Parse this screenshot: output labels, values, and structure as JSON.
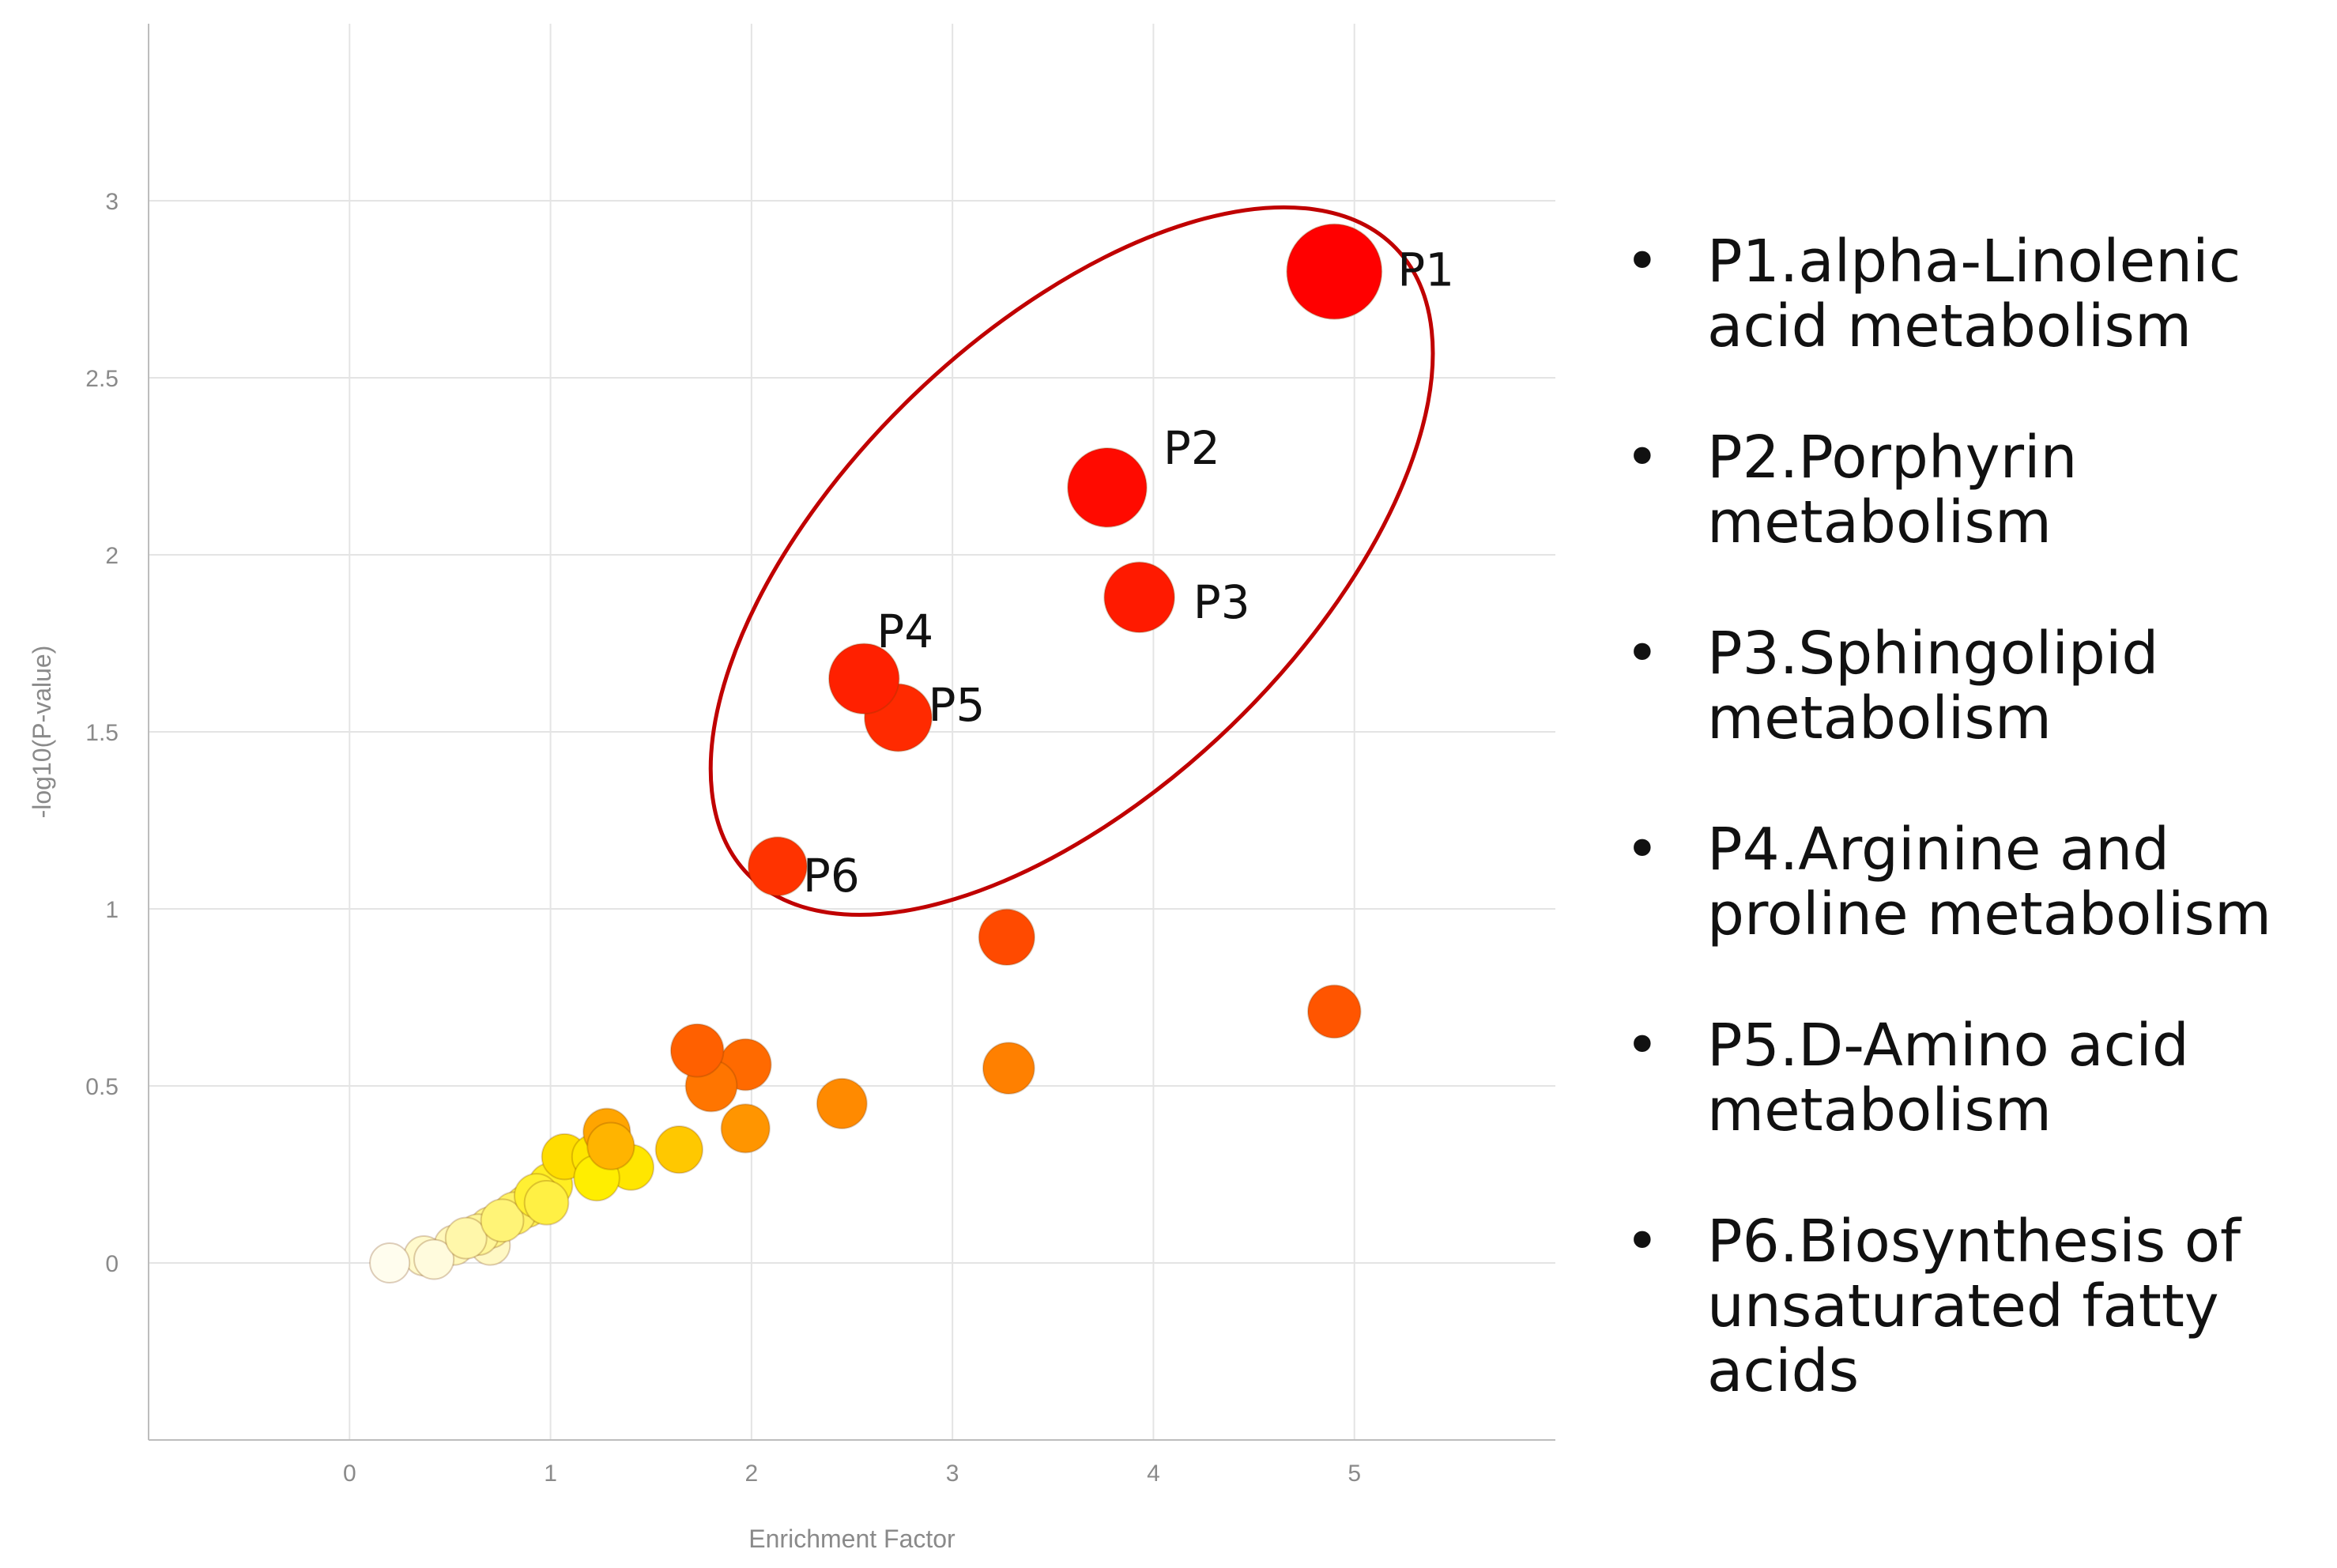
{
  "chart_data": {
    "type": "scatter",
    "xlabel": "Enrichment Factor",
    "ylabel": "-log10(P-value)",
    "xlim": [
      -1,
      6
    ],
    "ylim": [
      -0.5,
      3.5
    ],
    "x_ticks": [
      0,
      1,
      2,
      3,
      4,
      5
    ],
    "y_ticks": [
      0,
      0.5,
      1,
      1.5,
      2,
      2.5,
      3
    ],
    "grid": true,
    "points": [
      {
        "label": "P1",
        "x": 4.9,
        "y": 2.8,
        "color": "#ff0000",
        "size": 1.0
      },
      {
        "label": "P2",
        "x": 3.77,
        "y": 2.19,
        "color": "#ff0a00",
        "size": 0.78
      },
      {
        "label": "P3",
        "x": 3.93,
        "y": 1.88,
        "color": "#ff1a00",
        "size": 0.66
      },
      {
        "label": "P4",
        "x": 2.56,
        "y": 1.65,
        "color": "#ff2000",
        "size": 0.66
      },
      {
        "label": "P5",
        "x": 2.73,
        "y": 1.54,
        "color": "#ff2a00",
        "size": 0.62
      },
      {
        "label": "P6",
        "x": 2.13,
        "y": 1.12,
        "color": "#ff3300",
        "size": 0.5
      },
      {
        "label": "",
        "x": 3.27,
        "y": 0.92,
        "color": "#ff4a00",
        "size": 0.46
      },
      {
        "label": "",
        "x": 4.9,
        "y": 0.71,
        "color": "#ff5500",
        "size": 0.42
      },
      {
        "label": "",
        "x": 1.73,
        "y": 0.6,
        "color": "#ff6000",
        "size": 0.42
      },
      {
        "label": "",
        "x": 1.97,
        "y": 0.56,
        "color": "#ff6a00",
        "size": 0.4
      },
      {
        "label": "",
        "x": 1.8,
        "y": 0.5,
        "color": "#ff7500",
        "size": 0.4
      },
      {
        "label": "",
        "x": 3.28,
        "y": 0.55,
        "color": "#ff8000",
        "size": 0.4
      },
      {
        "label": "",
        "x": 2.45,
        "y": 0.45,
        "color": "#ff8a00",
        "size": 0.38
      },
      {
        "label": "",
        "x": 1.97,
        "y": 0.38,
        "color": "#ff9500",
        "size": 0.36
      },
      {
        "label": "",
        "x": 1.28,
        "y": 0.37,
        "color": "#ffa500",
        "size": 0.34
      },
      {
        "label": "",
        "x": 1.3,
        "y": 0.33,
        "color": "#ffb400",
        "size": 0.34
      },
      {
        "label": "",
        "x": 1.64,
        "y": 0.32,
        "color": "#ffc800",
        "size": 0.34
      },
      {
        "label": "",
        "x": 1.07,
        "y": 0.3,
        "color": "#ffdd00",
        "size": 0.32
      },
      {
        "label": "",
        "x": 1.22,
        "y": 0.3,
        "color": "#ffe600",
        "size": 0.32
      },
      {
        "label": "",
        "x": 1.4,
        "y": 0.27,
        "color": "#ffe600",
        "size": 0.32
      },
      {
        "label": "",
        "x": 1.23,
        "y": 0.24,
        "color": "#ffee00",
        "size": 0.32
      },
      {
        "label": "",
        "x": 1.0,
        "y": 0.22,
        "color": "#ffee22",
        "size": 0.3
      },
      {
        "label": "",
        "x": 0.93,
        "y": 0.19,
        "color": "#fff033",
        "size": 0.3
      },
      {
        "label": "",
        "x": 0.98,
        "y": 0.17,
        "color": "#fff044",
        "size": 0.3
      },
      {
        "label": "",
        "x": 0.88,
        "y": 0.16,
        "color": "#fff155",
        "size": 0.28
      },
      {
        "label": "",
        "x": 0.82,
        "y": 0.14,
        "color": "#fff266",
        "size": 0.28
      },
      {
        "label": "",
        "x": 0.76,
        "y": 0.12,
        "color": "#fff477",
        "size": 0.28
      },
      {
        "label": "",
        "x": 0.7,
        "y": 0.1,
        "color": "#fff588",
        "size": 0.26
      },
      {
        "label": "",
        "x": 0.64,
        "y": 0.08,
        "color": "#fff699",
        "size": 0.26
      },
      {
        "label": "",
        "x": 0.58,
        "y": 0.07,
        "color": "#fff7aa",
        "size": 0.26
      },
      {
        "label": "",
        "x": 0.52,
        "y": 0.05,
        "color": "#fff8bb",
        "size": 0.24
      },
      {
        "label": "",
        "x": 0.7,
        "y": 0.05,
        "color": "#fff8c4",
        "size": 0.24
      },
      {
        "label": "",
        "x": 0.37,
        "y": 0.02,
        "color": "#fffacc",
        "size": 0.24
      },
      {
        "label": "",
        "x": 0.42,
        "y": 0.01,
        "color": "#fffbdd",
        "size": 0.24
      },
      {
        "label": "",
        "x": 0.2,
        "y": 0.0,
        "color": "#fffdee",
        "size": 0.24
      }
    ],
    "highlight_color": "#c00000",
    "legend": [
      {
        "lines": [
          "P1.alpha-Linolenic",
          "acid metabolism"
        ]
      },
      {
        "lines": [
          "P2.Porphyrin",
          "metabolism"
        ]
      },
      {
        "lines": [
          "P3.Sphingolipid",
          "metabolism"
        ]
      },
      {
        "lines": [
          "P4.Arginine and",
          "proline metabolism"
        ]
      },
      {
        "lines": [
          "P5.D-Amino acid",
          "metabolism"
        ]
      },
      {
        "lines": [
          "P6.Biosynthesis of",
          "unsaturated fatty",
          "acids"
        ]
      }
    ],
    "legend_bullet": "•"
  }
}
